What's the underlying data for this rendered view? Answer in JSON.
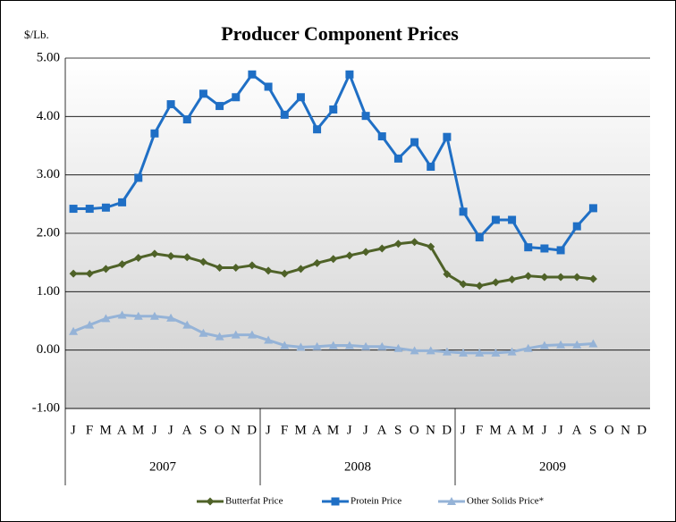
{
  "chart_data": {
    "type": "line",
    "title": "Producer Component Prices",
    "y_label": "$/Lb.",
    "categories": [
      "J",
      "F",
      "M",
      "A",
      "M",
      "J",
      "J",
      "A",
      "S",
      "O",
      "N",
      "D",
      "J",
      "F",
      "M",
      "A",
      "M",
      "J",
      "J",
      "A",
      "S",
      "O",
      "N",
      "D",
      "J",
      "F",
      "M",
      "A",
      "M",
      "J",
      "J",
      "A",
      "S",
      "O",
      "N",
      "D"
    ],
    "year_groups": [
      "2007",
      "2008",
      "2009"
    ],
    "series": [
      {
        "name": "Butterfat Price",
        "color": "#4f6228",
        "marker": "diamond",
        "values": [
          1.31,
          1.31,
          1.39,
          1.47,
          1.58,
          1.65,
          1.61,
          1.59,
          1.51,
          1.41,
          1.41,
          1.45,
          1.36,
          1.31,
          1.39,
          1.49,
          1.56,
          1.62,
          1.68,
          1.74,
          1.82,
          1.85,
          1.77,
          1.3,
          1.13,
          1.1,
          1.16,
          1.21,
          1.27,
          1.25,
          1.25,
          1.25,
          1.22,
          null,
          null,
          null
        ]
      },
      {
        "name": "Protein Price",
        "color": "#1f6fc5",
        "marker": "square",
        "values": [
          2.42,
          2.42,
          2.44,
          2.53,
          2.95,
          3.71,
          4.21,
          3.95,
          4.39,
          4.18,
          4.33,
          4.72,
          4.51,
          4.03,
          4.33,
          3.78,
          4.12,
          4.72,
          4.01,
          3.66,
          3.28,
          3.56,
          3.14,
          3.65,
          2.37,
          1.93,
          2.23,
          2.23,
          1.76,
          1.74,
          1.71,
          2.12,
          2.43,
          null,
          null,
          null
        ]
      },
      {
        "name": "Other Solids Price*",
        "color": "#95b3d7",
        "marker": "triangle",
        "values": [
          0.32,
          0.43,
          0.54,
          0.6,
          0.58,
          0.58,
          0.55,
          0.43,
          0.29,
          0.23,
          0.26,
          0.26,
          0.17,
          0.08,
          0.05,
          0.06,
          0.08,
          0.08,
          0.06,
          0.06,
          0.03,
          -0.01,
          -0.01,
          -0.03,
          -0.05,
          -0.05,
          -0.05,
          -0.03,
          0.03,
          0.08,
          0.09,
          0.09,
          0.11,
          null,
          null,
          null
        ]
      }
    ],
    "ylim": [
      -1,
      5
    ],
    "yticks": [
      {
        "value": -1,
        "label": "-1.00"
      },
      {
        "value": 0,
        "label": "0.00"
      },
      {
        "value": 1,
        "label": "1.00"
      },
      {
        "value": 2,
        "label": "2.00"
      },
      {
        "value": 3,
        "label": "3.00"
      },
      {
        "value": 4,
        "label": "4.00"
      },
      {
        "value": 5,
        "label": "5.00"
      }
    ],
    "grid": true
  }
}
